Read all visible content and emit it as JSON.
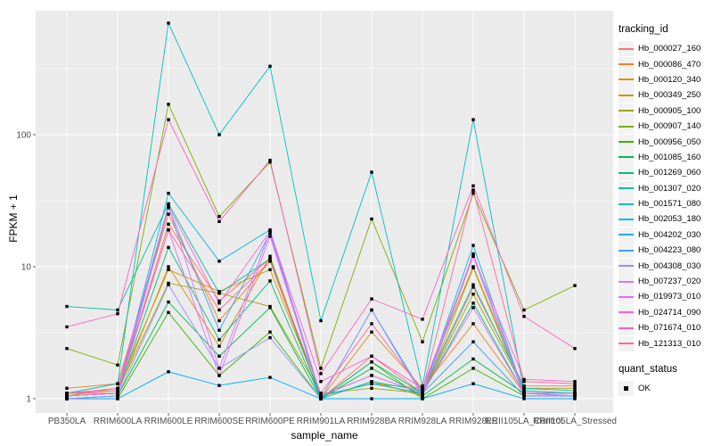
{
  "figure": {
    "ylabel": "FPKM + 1",
    "xlabel": "sample_name",
    "legend_title": "tracking_id",
    "quant_legend_title": "quant_status",
    "quant_legend_label": "OK"
  },
  "chart_data": {
    "type": "line",
    "title": "",
    "xlabel": "sample_name",
    "ylabel": "FPKM + 1",
    "y_scale": "log10",
    "y_ticks": [
      1,
      10,
      100
    ],
    "y_tick_labels": [
      "1",
      "10",
      "100"
    ],
    "y_minor_breaks": [
      3.1623,
      31.623,
      316.23
    ],
    "ylim": [
      0.79,
      880
    ],
    "grid": true,
    "legend_position": "right",
    "style": {
      "panel_bg": "#EBEBEB",
      "grid_color": "#FFFFFF",
      "tick_color": "#333333",
      "axis_text_color": "#4D4D4D",
      "point_color": "#000000",
      "legend_key_bg": "#F2F2F2"
    },
    "quant_status": {
      "label": "OK",
      "marker": "black-square"
    },
    "categories": [
      "PB350LA",
      "RRIM600LA",
      "RRIM600LE",
      "RRIM600SE",
      "RRIM600PE",
      "RRIM901LA",
      "RRIM928BA",
      "RRIM928LA",
      "RRIM928LE",
      "RRII105LA_Control",
      "RRII105LA_Stressed"
    ],
    "series": [
      {
        "name": "Hb_000027_160",
        "color": "#F8766D",
        "values": [
          1.1,
          1.1,
          21,
          5.5,
          11.5,
          1.0,
          2.1,
          1.1,
          7.0,
          1.25,
          1.25
        ]
      },
      {
        "name": "Hb_000086_470",
        "color": "#E88526",
        "values": [
          1.2,
          1.3,
          25,
          3.9,
          11,
          1.0,
          3.2,
          1.2,
          3.7,
          1.1,
          1.1
        ]
      },
      {
        "name": "Hb_000120_340",
        "color": "#D89000",
        "values": [
          1.05,
          1.1,
          10,
          2.5,
          12,
          1.0,
          1.35,
          1.05,
          9.8,
          1.1,
          1.05
        ]
      },
      {
        "name": "Hb_000349_250",
        "color": "#C09B00",
        "values": [
          1.05,
          1.2,
          9.5,
          6.5,
          9.5,
          1.05,
          1.3,
          1.2,
          10,
          1.15,
          1.1
        ]
      },
      {
        "name": "Hb_000905_100",
        "color": "#A3A500",
        "values": [
          1.1,
          1.15,
          7.5,
          6.3,
          5.0,
          1.1,
          1.2,
          1.1,
          6.2,
          1.2,
          1.2
        ]
      },
      {
        "name": "Hb_000907_140",
        "color": "#7CAE00",
        "values": [
          2.4,
          1.8,
          170,
          24,
          62,
          1.7,
          23,
          2.7,
          36,
          4.7,
          7.2
        ]
      },
      {
        "name": "Hb_000956_050",
        "color": "#39B600",
        "values": [
          1.0,
          1.0,
          4.5,
          1.5,
          3.2,
          1.0,
          1.9,
          1.0,
          1.7,
          1.05,
          1.05
        ]
      },
      {
        "name": "Hb_001085_160",
        "color": "#00BB4E",
        "values": [
          1.0,
          1.05,
          5.4,
          2.1,
          4.9,
          1.0,
          1.7,
          1.05,
          2.0,
          1.1,
          1.1
        ]
      },
      {
        "name": "Hb_001269_060",
        "color": "#00BF7D",
        "values": [
          1.05,
          1.1,
          14,
          2.8,
          7.8,
          1.0,
          1.9,
          1.1,
          5.3,
          1.1,
          1.1
        ]
      },
      {
        "name": "Hb_001307_020",
        "color": "#00C1A3",
        "values": [
          5.0,
          4.7,
          30,
          6.3,
          11.5,
          1.0,
          1.35,
          1.15,
          7.3,
          1.2,
          1.15
        ]
      },
      {
        "name": "Hb_001571_080",
        "color": "#00BFC4",
        "values": [
          1.1,
          1.3,
          700,
          100,
          330,
          3.9,
          52,
          1.25,
          130,
          1.15,
          1.1
        ]
      },
      {
        "name": "Hb_002053_180",
        "color": "#00BAE0",
        "values": [
          1.05,
          1.1,
          36,
          11,
          19,
          1.05,
          1.3,
          1.1,
          14.5,
          1.1,
          1.05
        ]
      },
      {
        "name": "Hb_004202_030",
        "color": "#00B0F6",
        "values": [
          1.0,
          1.0,
          1.6,
          1.26,
          1.45,
          1.0,
          1.0,
          1.0,
          1.3,
          1.0,
          1.0
        ]
      },
      {
        "name": "Hb_004223_080",
        "color": "#35A2FF",
        "values": [
          1.0,
          1.05,
          28,
          3.3,
          18,
          1.0,
          4.7,
          1.1,
          2.7,
          1.05,
          1.05
        ]
      },
      {
        "name": "Hb_004308_030",
        "color": "#9590FF",
        "values": [
          1.0,
          1.05,
          7.3,
          1.7,
          2.9,
          1.0,
          4.7,
          1.05,
          12,
          1.05,
          1.05
        ]
      },
      {
        "name": "Hb_007237_020",
        "color": "#C77CFF",
        "values": [
          1.05,
          1.1,
          29,
          1.7,
          18.5,
          1.05,
          1.5,
          1.1,
          12.5,
          1.1,
          1.1
        ]
      },
      {
        "name": "Hb_019973_010",
        "color": "#E76BF3",
        "values": [
          1.05,
          1.1,
          19,
          1.5,
          17,
          1.05,
          1.5,
          1.1,
          4.9,
          1.1,
          1.05
        ]
      },
      {
        "name": "Hb_024714_090",
        "color": "#FA62DB",
        "values": [
          1.1,
          1.2,
          29,
          5.3,
          18.5,
          1.35,
          2.1,
          1.2,
          12,
          1.4,
          1.35
        ]
      },
      {
        "name": "Hb_071674_010",
        "color": "#FF61C3",
        "values": [
          3.5,
          4.4,
          130,
          22,
          64,
          1.55,
          5.7,
          4.0,
          41,
          4.2,
          2.4
        ]
      },
      {
        "name": "Hb_121313_010",
        "color": "#FF6A98",
        "values": [
          1.1,
          1.15,
          19,
          4.7,
          11,
          1.1,
          3.7,
          1.15,
          38,
          1.35,
          1.3
        ]
      }
    ]
  }
}
